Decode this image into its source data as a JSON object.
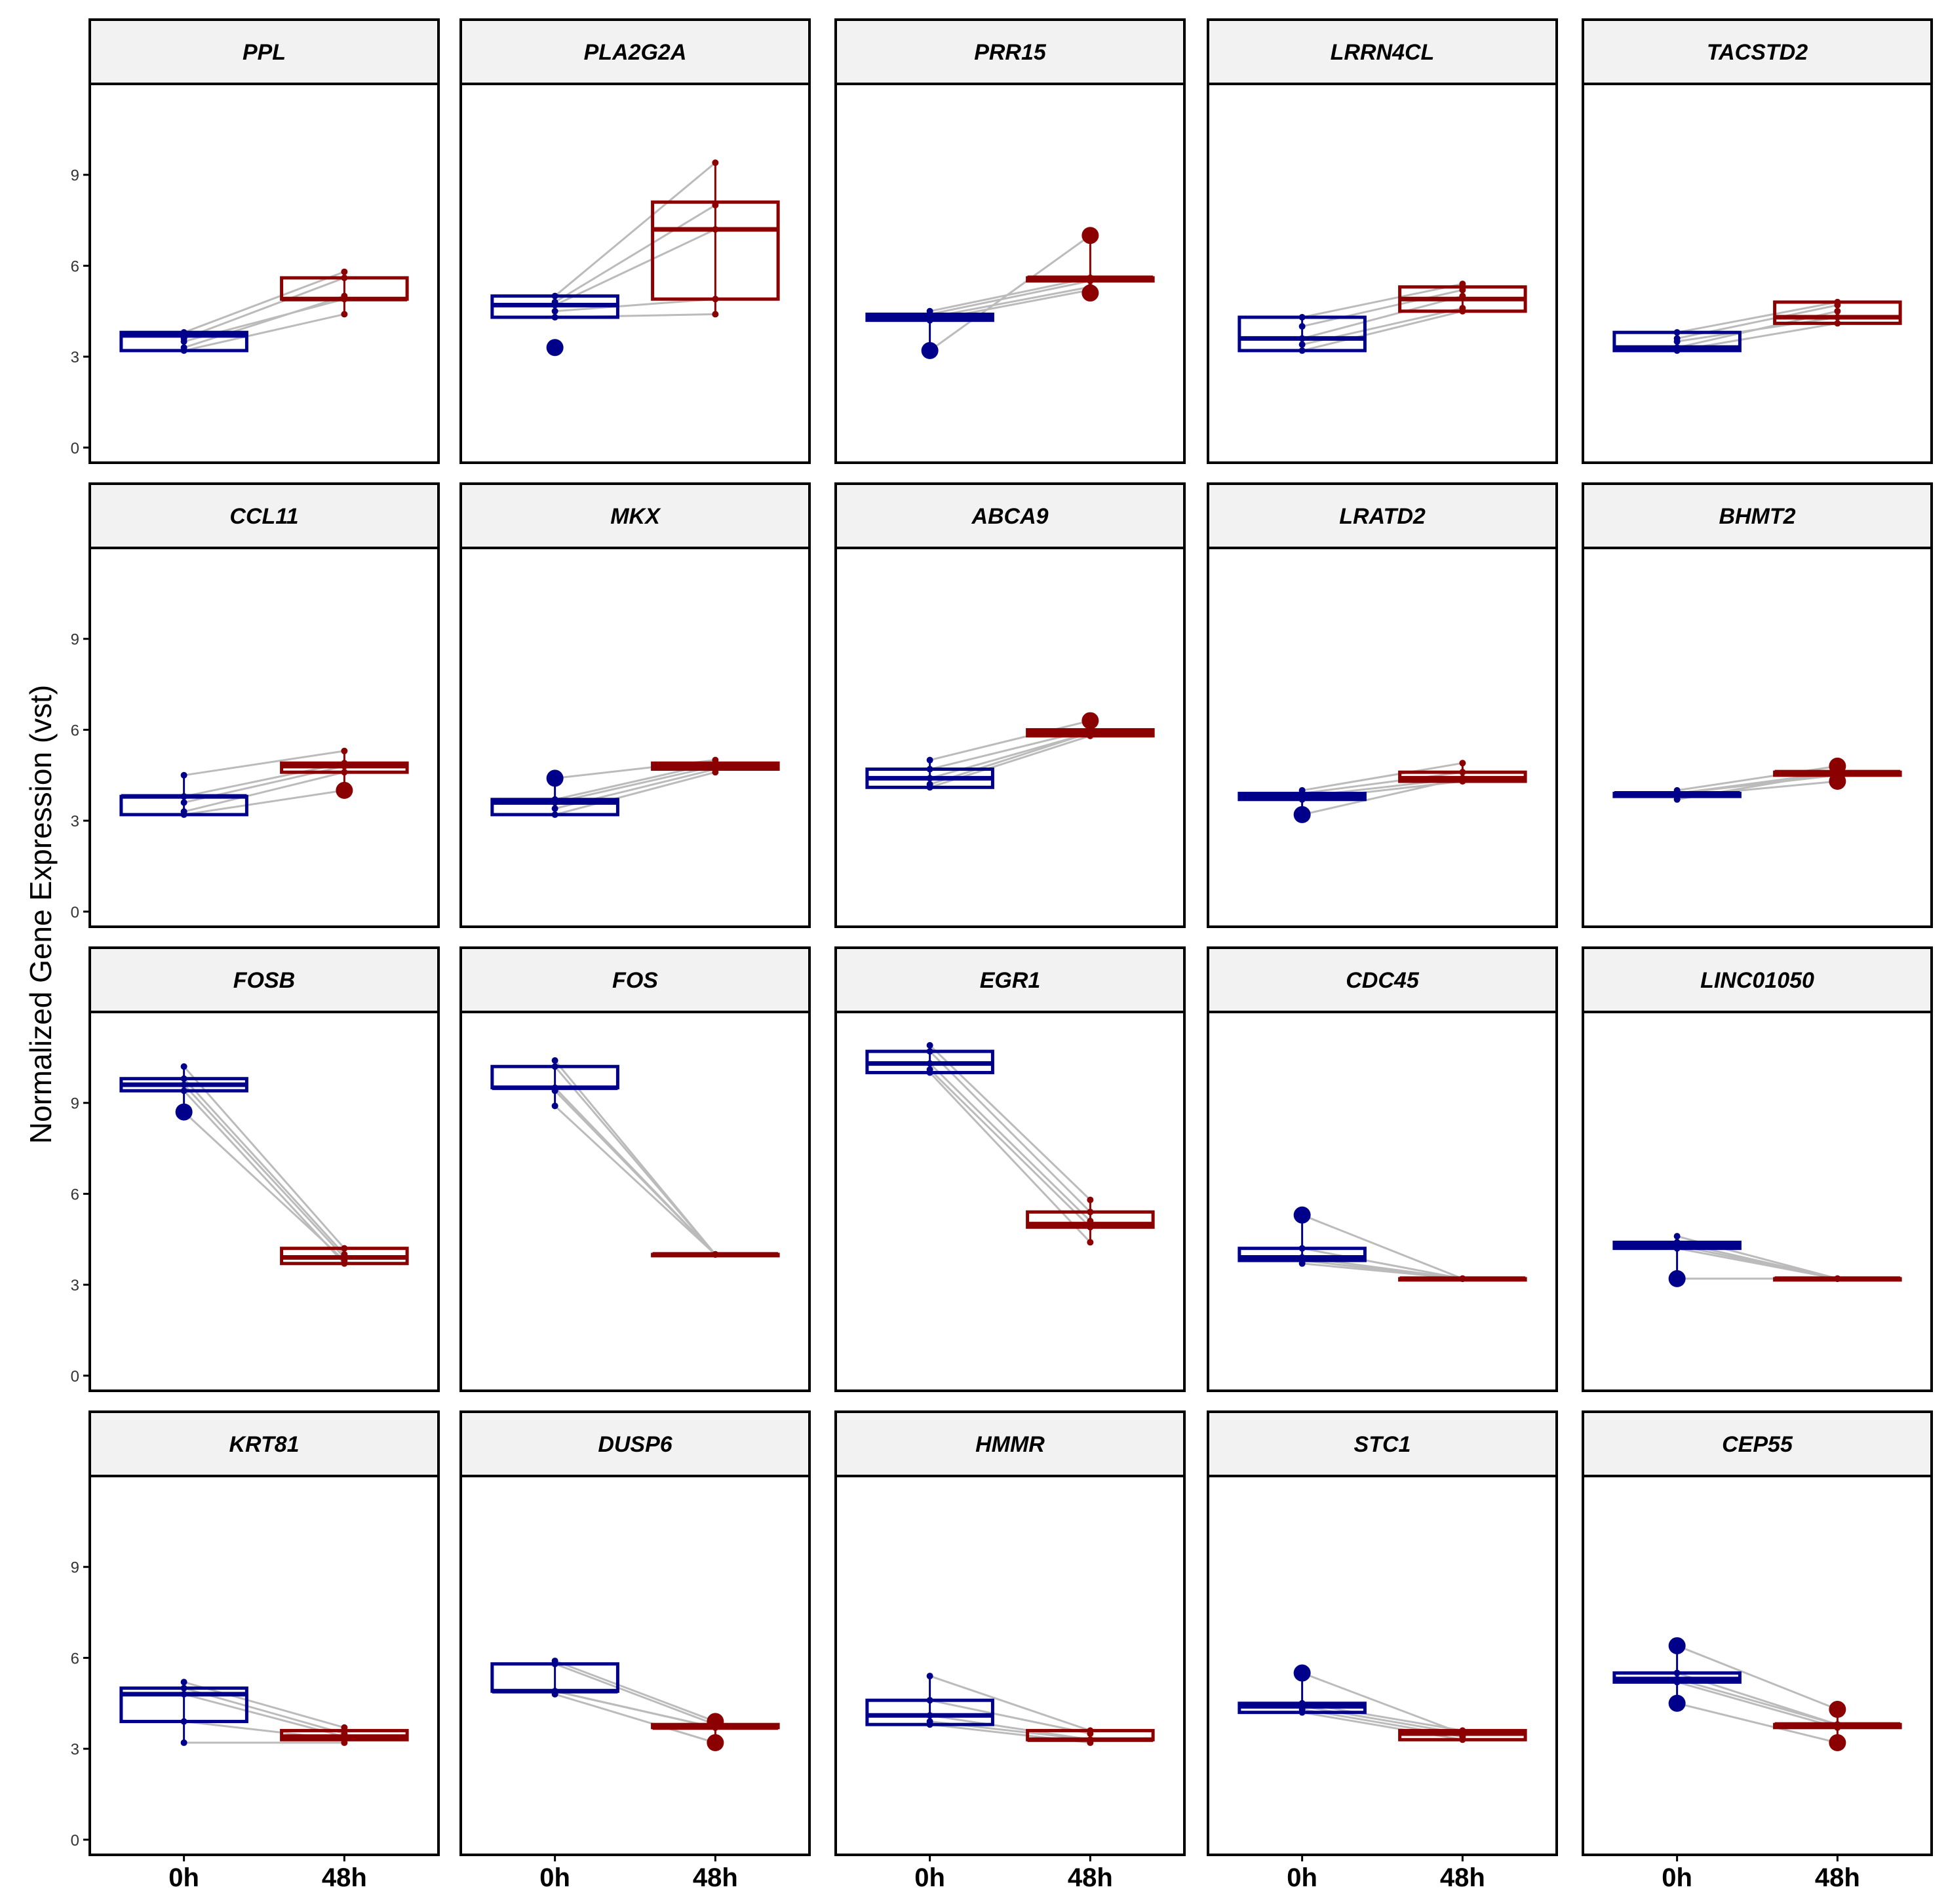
{
  "chart_data": {
    "type": "box",
    "title": "",
    "ylabel": "Normalized Gene Expression (vst)",
    "xlabel": "",
    "categories": [
      "0h",
      "48h"
    ],
    "ylim": [
      -0.5,
      12
    ],
    "yticks": [
      0,
      3,
      6,
      9
    ],
    "colors": {
      "0h": "#00008B",
      "48h": "#8B0000",
      "paired_line": "#BBBBBB",
      "strip_fill": "#F2F2F2"
    },
    "panels": [
      {
        "gene": "PPL",
        "box0h": {
          "q1": 3.2,
          "median": 3.7,
          "q3": 3.8
        },
        "box48h": {
          "q1": 4.9,
          "median": 4.9,
          "q3": 5.6
        },
        "pairs": [
          [
            3.8,
            5.8
          ],
          [
            3.6,
            5.6
          ],
          [
            3.3,
            5.0
          ],
          [
            3.5,
            4.9
          ],
          [
            3.2,
            4.4
          ]
        ],
        "outliers0h": [],
        "outliers48h": []
      },
      {
        "gene": "PLA2G2A",
        "box0h": {
          "q1": 4.3,
          "median": 4.7,
          "q3": 5.0
        },
        "box48h": {
          "q1": 4.9,
          "median": 7.2,
          "q3": 8.1
        },
        "pairs": [
          [
            5.0,
            9.4
          ],
          [
            4.8,
            8.0
          ],
          [
            4.7,
            7.2
          ],
          [
            4.5,
            4.9
          ],
          [
            4.3,
            4.4
          ]
        ],
        "outliers0h": [
          3.3
        ],
        "outliers48h": []
      },
      {
        "gene": "PRR15",
        "box0h": {
          "q1": 4.2,
          "median": 4.3,
          "q3": 4.4
        },
        "box48h": {
          "q1": 5.5,
          "median": 5.6,
          "q3": 5.6
        },
        "pairs": [
          [
            4.5,
            5.6
          ],
          [
            4.4,
            5.5
          ],
          [
            4.3,
            5.3
          ],
          [
            4.2,
            5.2
          ],
          [
            3.2,
            7.0
          ]
        ],
        "outliers0h": [
          3.2
        ],
        "outliers48h": [
          7.0,
          5.1
        ]
      },
      {
        "gene": "LRRN4CL",
        "box0h": {
          "q1": 3.2,
          "median": 3.6,
          "q3": 4.3
        },
        "box48h": {
          "q1": 4.5,
          "median": 4.9,
          "q3": 5.3
        },
        "pairs": [
          [
            4.3,
            5.4
          ],
          [
            3.6,
            5.0
          ],
          [
            3.2,
            4.5
          ],
          [
            3.4,
            4.6
          ],
          [
            4.0,
            5.2
          ]
        ],
        "outliers0h": [],
        "outliers48h": []
      },
      {
        "gene": "TACSTD2",
        "box0h": {
          "q1": 3.2,
          "median": 3.3,
          "q3": 3.8
        },
        "box48h": {
          "q1": 4.1,
          "median": 4.3,
          "q3": 4.8
        },
        "pairs": [
          [
            3.8,
            4.8
          ],
          [
            3.5,
            4.3
          ],
          [
            3.2,
            4.1
          ],
          [
            3.3,
            4.5
          ],
          [
            3.6,
            4.7
          ]
        ],
        "outliers0h": [],
        "outliers48h": []
      },
      {
        "gene": "CCL11",
        "box0h": {
          "q1": 3.2,
          "median": 3.8,
          "q3": 3.8
        },
        "box48h": {
          "q1": 4.6,
          "median": 4.8,
          "q3": 4.9
        },
        "pairs": [
          [
            4.5,
            5.3
          ],
          [
            3.8,
            4.9
          ],
          [
            3.6,
            4.8
          ],
          [
            3.3,
            4.6
          ],
          [
            3.2,
            4.0
          ]
        ],
        "outliers0h": [],
        "outliers48h": [
          4.0
        ]
      },
      {
        "gene": "MKX",
        "box0h": {
          "q1": 3.2,
          "median": 3.6,
          "q3": 3.7
        },
        "box48h": {
          "q1": 4.7,
          "median": 4.8,
          "q3": 4.9
        },
        "pairs": [
          [
            4.4,
            5.0
          ],
          [
            3.7,
            4.9
          ],
          [
            3.6,
            4.8
          ],
          [
            3.4,
            4.7
          ],
          [
            3.2,
            4.6
          ]
        ],
        "outliers0h": [
          4.4
        ],
        "outliers48h": []
      },
      {
        "gene": "ABCA9",
        "box0h": {
          "q1": 4.1,
          "median": 4.4,
          "q3": 4.7
        },
        "box48h": {
          "q1": 5.8,
          "median": 5.9,
          "q3": 6.0
        },
        "pairs": [
          [
            5.0,
            6.3
          ],
          [
            4.7,
            6.0
          ],
          [
            4.4,
            5.9
          ],
          [
            4.2,
            5.9
          ],
          [
            4.1,
            5.8
          ]
        ],
        "outliers0h": [],
        "outliers48h": [
          6.3
        ]
      },
      {
        "gene": "LRATD2",
        "box0h": {
          "q1": 3.7,
          "median": 3.8,
          "q3": 3.9
        },
        "box48h": {
          "q1": 4.3,
          "median": 4.4,
          "q3": 4.6
        },
        "pairs": [
          [
            4.0,
            4.9
          ],
          [
            3.9,
            4.6
          ],
          [
            3.8,
            4.4
          ],
          [
            3.7,
            4.3
          ],
          [
            3.2,
            4.4
          ]
        ],
        "outliers0h": [
          3.2
        ],
        "outliers48h": []
      },
      {
        "gene": "BHMT2",
        "box0h": {
          "q1": 3.8,
          "median": 3.9,
          "q3": 3.9
        },
        "box48h": {
          "q1": 4.5,
          "median": 4.6,
          "q3": 4.6
        },
        "pairs": [
          [
            4.0,
            4.8
          ],
          [
            3.9,
            4.6
          ],
          [
            3.9,
            4.5
          ],
          [
            3.8,
            4.3
          ],
          [
            3.7,
            4.6
          ]
        ],
        "outliers0h": [],
        "outliers48h": [
          4.8,
          4.3
        ]
      },
      {
        "gene": "FOSB",
        "box0h": {
          "q1": 9.4,
          "median": 9.6,
          "q3": 9.8
        },
        "box48h": {
          "q1": 3.7,
          "median": 3.9,
          "q3": 4.2
        },
        "pairs": [
          [
            10.2,
            4.2
          ],
          [
            9.8,
            4.0
          ],
          [
            9.6,
            3.9
          ],
          [
            9.4,
            3.7
          ],
          [
            8.7,
            3.8
          ]
        ],
        "outliers0h": [
          8.7
        ],
        "outliers48h": []
      },
      {
        "gene": "FOS",
        "box0h": {
          "q1": 9.5,
          "median": 9.5,
          "q3": 10.2
        },
        "box48h": {
          "q1": 4.0,
          "median": 4.0,
          "q3": 4.0
        },
        "pairs": [
          [
            10.4,
            4.0
          ],
          [
            10.2,
            4.0
          ],
          [
            9.5,
            4.0
          ],
          [
            9.4,
            4.0
          ],
          [
            8.9,
            4.0
          ]
        ],
        "outliers0h": [],
        "outliers48h": []
      },
      {
        "gene": "EGR1",
        "box0h": {
          "q1": 10.0,
          "median": 10.3,
          "q3": 10.7
        },
        "box48h": {
          "q1": 4.9,
          "median": 5.0,
          "q3": 5.4
        },
        "pairs": [
          [
            10.9,
            5.8
          ],
          [
            10.7,
            5.4
          ],
          [
            10.3,
            5.1
          ],
          [
            10.1,
            4.9
          ],
          [
            10.0,
            4.4
          ]
        ],
        "outliers0h": [],
        "outliers48h": []
      },
      {
        "gene": "CDC45",
        "box0h": {
          "q1": 3.8,
          "median": 3.9,
          "q3": 4.2
        },
        "box48h": {
          "q1": 3.2,
          "median": 3.2,
          "q3": 3.2
        },
        "pairs": [
          [
            5.3,
            3.2
          ],
          [
            4.2,
            3.2
          ],
          [
            3.9,
            3.2
          ],
          [
            3.8,
            3.2
          ],
          [
            3.7,
            3.2
          ]
        ],
        "outliers0h": [
          5.3
        ],
        "outliers48h": []
      },
      {
        "gene": "LINC01050",
        "box0h": {
          "q1": 4.2,
          "median": 4.3,
          "q3": 4.4
        },
        "box48h": {
          "q1": 3.2,
          "median": 3.2,
          "q3": 3.2
        },
        "pairs": [
          [
            4.6,
            3.2
          ],
          [
            4.4,
            3.2
          ],
          [
            4.3,
            3.2
          ],
          [
            4.2,
            3.2
          ],
          [
            3.2,
            3.2
          ]
        ],
        "outliers0h": [
          3.2
        ],
        "outliers48h": []
      },
      {
        "gene": "KRT81",
        "box0h": {
          "q1": 3.9,
          "median": 4.8,
          "q3": 5.0
        },
        "box48h": {
          "q1": 3.3,
          "median": 3.4,
          "q3": 3.6
        },
        "pairs": [
          [
            5.2,
            3.7
          ],
          [
            5.0,
            3.5
          ],
          [
            4.8,
            3.4
          ],
          [
            3.9,
            3.3
          ],
          [
            3.2,
            3.2
          ]
        ],
        "outliers0h": [],
        "outliers48h": []
      },
      {
        "gene": "DUSP6",
        "box0h": {
          "q1": 4.9,
          "median": 4.9,
          "q3": 5.8
        },
        "box48h": {
          "q1": 3.7,
          "median": 3.7,
          "q3": 3.8
        },
        "pairs": [
          [
            5.9,
            3.9
          ],
          [
            5.8,
            3.8
          ],
          [
            4.9,
            3.7
          ],
          [
            4.9,
            3.7
          ],
          [
            4.8,
            3.2
          ]
        ],
        "outliers0h": [],
        "outliers48h": [
          3.2,
          3.9
        ]
      },
      {
        "gene": "HMMR",
        "box0h": {
          "q1": 3.8,
          "median": 4.1,
          "q3": 4.6
        },
        "box48h": {
          "q1": 3.3,
          "median": 3.3,
          "q3": 3.6
        },
        "pairs": [
          [
            5.4,
            3.6
          ],
          [
            4.6,
            3.5
          ],
          [
            4.1,
            3.3
          ],
          [
            3.9,
            3.3
          ],
          [
            3.8,
            3.2
          ]
        ],
        "outliers0h": [],
        "outliers48h": []
      },
      {
        "gene": "STC1",
        "box0h": {
          "q1": 4.2,
          "median": 4.4,
          "q3": 4.5
        },
        "box48h": {
          "q1": 3.3,
          "median": 3.5,
          "q3": 3.6
        },
        "pairs": [
          [
            5.5,
            3.5
          ],
          [
            4.5,
            3.6
          ],
          [
            4.4,
            3.5
          ],
          [
            4.3,
            3.4
          ],
          [
            4.2,
            3.3
          ]
        ],
        "outliers0h": [
          5.5
        ],
        "outliers48h": []
      },
      {
        "gene": "CEP55",
        "box0h": {
          "q1": 5.2,
          "median": 5.3,
          "q3": 5.5
        },
        "box48h": {
          "q1": 3.7,
          "median": 3.8,
          "q3": 3.8
        },
        "pairs": [
          [
            6.4,
            4.3
          ],
          [
            5.5,
            3.8
          ],
          [
            5.3,
            3.8
          ],
          [
            5.2,
            3.7
          ],
          [
            4.5,
            3.2
          ]
        ],
        "outliers0h": [
          6.4,
          4.5
        ],
        "outliers48h": [
          4.3,
          3.2
        ]
      }
    ]
  }
}
